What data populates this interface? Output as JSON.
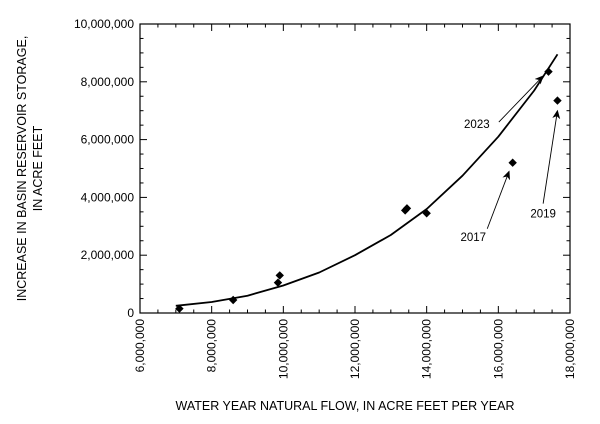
{
  "chart_data": {
    "type": "scatter",
    "xlabel": "WATER YEAR NATURAL FLOW, IN ACRE FEET PER YEAR",
    "ylabel_line1": "INCREASE IN BASIN RESERVOIR STORAGE,",
    "ylabel_line2": "IN ACRE FEET",
    "xlim": [
      6000000,
      18000000
    ],
    "ylim": [
      0,
      10000000
    ],
    "x_ticks": [
      6000000,
      8000000,
      10000000,
      12000000,
      14000000,
      16000000,
      18000000
    ],
    "x_tick_labels": [
      "6,000,000",
      "8,000,000",
      "10,000,000",
      "12,000,000",
      "14,000,000",
      "16,000,000",
      "18,000,000"
    ],
    "y_ticks": [
      0,
      2000000,
      4000000,
      6000000,
      8000000,
      10000000
    ],
    "y_tick_labels": [
      "0",
      "2,000,000",
      "4,000,000",
      "6,000,000",
      "8,000,000",
      "10,000,000"
    ],
    "grid": false,
    "points": [
      {
        "x": 7100000,
        "y": 150000
      },
      {
        "x": 8600000,
        "y": 450000
      },
      {
        "x": 9850000,
        "y": 1050000
      },
      {
        "x": 9900000,
        "y": 1300000
      },
      {
        "x": 13400000,
        "y": 3550000
      },
      {
        "x": 13450000,
        "y": 3620000
      },
      {
        "x": 14000000,
        "y": 3450000
      },
      {
        "x": 16400000,
        "y": 5200000
      },
      {
        "x": 17400000,
        "y": 8350000
      },
      {
        "x": 17650000,
        "y": 7350000
      }
    ],
    "trend_curve": {
      "x": [
        7000000,
        8000000,
        9000000,
        10000000,
        11000000,
        12000000,
        13000000,
        14000000,
        15000000,
        16000000,
        17000000,
        17650000
      ],
      "y": [
        250000,
        380000,
        600000,
        950000,
        1400000,
        2000000,
        2700000,
        3600000,
        4750000,
        6100000,
        7700000,
        8950000
      ]
    },
    "annotations": [
      {
        "text": "2023",
        "x": 16800000,
        "y": 8100000,
        "label_x": 15400000,
        "label_y": 6400000,
        "arrow_to_x": 17250000,
        "arrow_to_y": 8200000
      },
      {
        "text": "2017",
        "x": 16400000,
        "y": 5200000,
        "label_x": 15300000,
        "label_y": 2500000,
        "arrow_to_x": 16300000,
        "arrow_to_y": 4900000
      },
      {
        "text": "2019",
        "x": 17650000,
        "y": 7350000,
        "label_x": 17250000,
        "label_y": 3300000,
        "arrow_to_x": 17650000,
        "arrow_to_y": 7000000
      }
    ]
  }
}
